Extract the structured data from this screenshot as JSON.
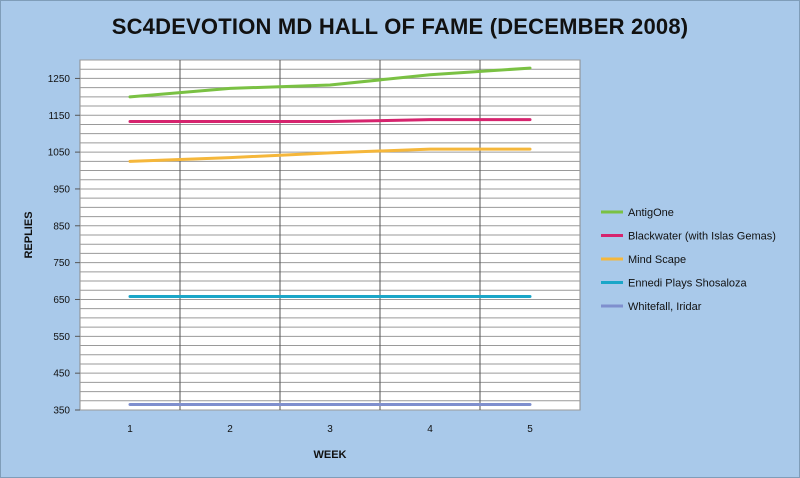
{
  "chart_data": {
    "type": "line",
    "title": "SC4DEVOTION MD HALL OF FAME (DECEMBER 2008)",
    "xlabel": "WEEK",
    "ylabel": "REPLIES",
    "x": [
      1,
      2,
      3,
      4,
      5
    ],
    "x_tick_labels": [
      "1",
      "2",
      "3",
      "4",
      "5"
    ],
    "ylim": [
      350,
      1300
    ],
    "y_tick_labels": [
      "350",
      "450",
      "550",
      "650",
      "750",
      "850",
      "950",
      "1050",
      "1150",
      "1250"
    ],
    "y_ticks": [
      350,
      450,
      550,
      650,
      750,
      850,
      950,
      1050,
      1150,
      1250
    ],
    "grid": true,
    "legend_position": "right",
    "series": [
      {
        "name": "AntigOne",
        "color": "#7ac143",
        "values": [
          1200,
          1223,
          1232,
          1260,
          1278
        ]
      },
      {
        "name": "Blackwater (with Islas Gemas)",
        "color": "#d6246e",
        "values": [
          1133,
          1133,
          1133,
          1138,
          1138
        ]
      },
      {
        "name": "Mind Scape",
        "color": "#f5b73b",
        "values": [
          1025,
          1035,
          1048,
          1058,
          1058
        ]
      },
      {
        "name": "Ennedi Plays Shosaloza",
        "color": "#1aa6c8",
        "values": [
          658,
          658,
          658,
          658,
          658
        ]
      },
      {
        "name": "Whitefall, Iridar",
        "color": "#7f8fce",
        "values": [
          365,
          365,
          365,
          365,
          365
        ]
      }
    ]
  }
}
